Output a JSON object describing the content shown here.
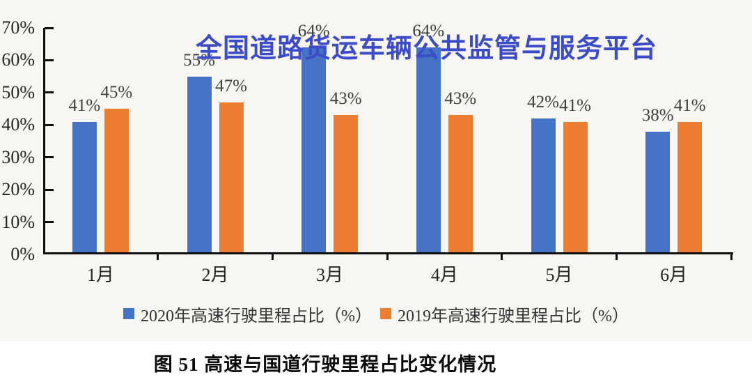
{
  "watermark_title": "全国道路货运车辆公共监管与服务平台",
  "caption": "图 51 高速与国道行驶里程占比变化情况",
  "colors": {
    "bar_2020": "#4472C4",
    "bar_2019": "#ED7D31",
    "watermark": "#3C4CC8",
    "axis": "#0d0d0d",
    "chart_background": "#f7f6f3"
  },
  "chart_data": {
    "type": "bar",
    "title": "",
    "categories": [
      "1月",
      "2月",
      "3月",
      "4月",
      "5月",
      "6月"
    ],
    "series": [
      {
        "name": "2020年高速行驶里程占比（%）",
        "year": "2020",
        "color": "#4472C4",
        "values": [
          41,
          55,
          64,
          64,
          42,
          38
        ],
        "data_labels": [
          "41%",
          "55%",
          "64%",
          "64%",
          "42%",
          "38%"
        ]
      },
      {
        "name": "2019年高速行驶里程占比（%）",
        "year": "2019",
        "color": "#ED7D31",
        "values": [
          45,
          47,
          43,
          43,
          41,
          41
        ],
        "data_labels": [
          "45%",
          "47%",
          "43%",
          "43%",
          "41%",
          "41%"
        ]
      }
    ],
    "xlabel": "",
    "ylabel": "",
    "ylim": [
      0,
      70
    ],
    "ytick_step": 10,
    "ytick_labels": [
      "0%",
      "10%",
      "20%",
      "30%",
      "40%",
      "50%",
      "60%",
      "70%"
    ],
    "grid": false,
    "legend_position": "bottom",
    "value_labels_shown": true
  }
}
